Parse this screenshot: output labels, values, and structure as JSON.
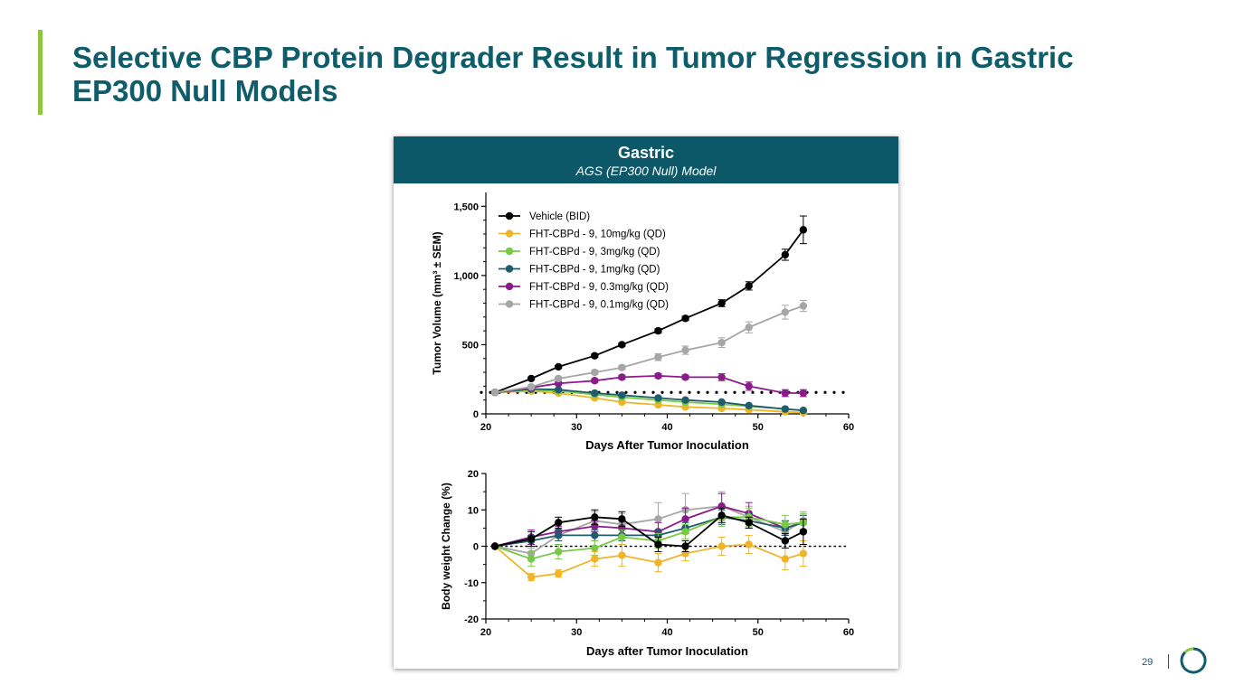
{
  "slide": {
    "title_line1": "Selective CBP Protein Degrader Result in Tumor Regression in Gastric",
    "title_line2": "EP300 Null Models",
    "page_number": "29"
  },
  "panel": {
    "title": "Gastric",
    "subtitle": "AGS (EP300 Null) Model"
  },
  "colors": {
    "title": "#0f5d6b",
    "accent": "#8dc63f",
    "header_bg": "#0d5868"
  },
  "chart_data": [
    {
      "type": "line",
      "title": "Tumor volume",
      "xlabel": "Days After Tumor Inoculation",
      "ylabel": "Tumor Volume (mm³ ± SEM)",
      "xlim": [
        20,
        60
      ],
      "ylim": [
        0,
        1600
      ],
      "xticks": [
        20,
        30,
        40,
        50,
        60
      ],
      "xtick_labels": [
        "20",
        "30",
        "40",
        "50",
        "60"
      ],
      "yticks": [
        0,
        500,
        1000,
        1500
      ],
      "ytick_labels": [
        "0",
        "500",
        "1,000",
        "1,500"
      ],
      "reference_line": 155,
      "legend_position": "top-left",
      "series": [
        {
          "name": "Vehicle (BID)",
          "color": "#000000",
          "x": [
            21,
            25,
            28,
            32,
            35,
            39,
            42,
            46,
            49,
            53,
            55
          ],
          "values": [
            155,
            255,
            340,
            420,
            500,
            600,
            690,
            800,
            925,
            1150,
            1330
          ],
          "err": [
            5,
            8,
            10,
            12,
            12,
            15,
            15,
            25,
            30,
            40,
            100
          ]
        },
        {
          "name": "FHT-CBPd - 9, 10mg/kg (QD)",
          "color": "#f0b429",
          "x": [
            21,
            25,
            28,
            32,
            35,
            39,
            42,
            46,
            49,
            53,
            55
          ],
          "values": [
            155,
            165,
            150,
            115,
            85,
            65,
            50,
            40,
            30,
            15,
            10
          ],
          "err": [
            5,
            8,
            8,
            8,
            8,
            6,
            6,
            5,
            5,
            4,
            3
          ]
        },
        {
          "name": "FHT-CBPd - 9, 3mg/kg (QD)",
          "color": "#7ac943",
          "x": [
            21,
            25,
            28,
            32,
            35,
            39,
            42,
            46,
            49,
            53,
            55
          ],
          "values": [
            155,
            175,
            165,
            140,
            120,
            100,
            85,
            70,
            55,
            35,
            25
          ],
          "err": [
            5,
            8,
            8,
            8,
            8,
            7,
            7,
            6,
            5,
            4,
            4
          ]
        },
        {
          "name": "FHT-CBPd - 9, 1mg/kg (QD)",
          "color": "#1f5c6e",
          "x": [
            21,
            25,
            28,
            32,
            35,
            39,
            42,
            46,
            49,
            53,
            55
          ],
          "values": [
            155,
            180,
            175,
            150,
            135,
            115,
            100,
            85,
            60,
            35,
            25
          ],
          "err": [
            5,
            8,
            8,
            8,
            8,
            7,
            7,
            6,
            5,
            4,
            4
          ]
        },
        {
          "name": "FHT-CBPd - 9, 0.3mg/kg (QD)",
          "color": "#8b1a8b",
          "x": [
            21,
            25,
            28,
            32,
            35,
            39,
            42,
            46,
            49,
            53,
            55
          ],
          "values": [
            155,
            190,
            220,
            240,
            265,
            275,
            265,
            265,
            200,
            150,
            150
          ],
          "err": [
            5,
            10,
            12,
            12,
            15,
            15,
            15,
            25,
            30,
            25,
            25
          ]
        },
        {
          "name": "FHT-CBPd - 9, 0.1mg/kg (QD)",
          "color": "#a6a6a6",
          "x": [
            21,
            25,
            28,
            32,
            35,
            39,
            42,
            46,
            49,
            53,
            55
          ],
          "values": [
            155,
            195,
            255,
            300,
            335,
            410,
            460,
            515,
            625,
            735,
            780
          ],
          "err": [
            5,
            10,
            12,
            15,
            15,
            25,
            30,
            35,
            40,
            50,
            40
          ]
        }
      ]
    },
    {
      "type": "line",
      "title": "Body weight change",
      "xlabel": "Days after Tumor Inoculation",
      "ylabel": "Body weight Change (%)",
      "xlim": [
        20,
        60
      ],
      "ylim": [
        -20,
        20
      ],
      "xticks": [
        20,
        30,
        40,
        50,
        60
      ],
      "xtick_labels": [
        "20",
        "30",
        "40",
        "50",
        "60"
      ],
      "yticks": [
        -20,
        -10,
        0,
        10,
        20
      ],
      "ytick_labels": [
        "-20",
        "-10",
        "0",
        "10",
        "20"
      ],
      "reference_line": 0,
      "series": [
        {
          "name": "FHT-CBPd - 9, 0.1mg/kg (QD)",
          "color": "#a6a6a6",
          "x": [
            21,
            25,
            28,
            32,
            35,
            39,
            42,
            46,
            49,
            53,
            55
          ],
          "values": [
            0,
            -2,
            3,
            7,
            6,
            7.5,
            10,
            11,
            8,
            4,
            7
          ],
          "err": [
            0,
            1.5,
            1.5,
            2.5,
            3,
            4.5,
            4.5,
            4,
            3,
            2,
            2.5
          ]
        },
        {
          "name": "FHT-CBPd - 9, 0.3mg/kg (QD)",
          "color": "#8b1a8b",
          "x": [
            21,
            25,
            28,
            32,
            35,
            39,
            42,
            46,
            49,
            53,
            55
          ],
          "values": [
            0,
            2.5,
            4,
            5.5,
            5,
            4,
            7.5,
            11,
            9,
            5,
            6.5
          ],
          "err": [
            0,
            2,
            1.5,
            1.5,
            2,
            2.5,
            3,
            3.5,
            3,
            2,
            2
          ]
        },
        {
          "name": "FHT-CBPd - 9, 1mg/kg (QD)",
          "color": "#1f5c6e",
          "x": [
            21,
            25,
            28,
            32,
            35,
            39,
            42,
            46,
            49,
            53,
            55
          ],
          "values": [
            0,
            1.5,
            3,
            3,
            3,
            3,
            5,
            8,
            7,
            5,
            6.5
          ],
          "err": [
            0,
            1.5,
            1.5,
            1.5,
            1.5,
            1.5,
            1.5,
            2,
            2,
            2,
            2
          ]
        },
        {
          "name": "FHT-CBPd - 9, 3mg/kg (QD)",
          "color": "#7ac943",
          "x": [
            21,
            25,
            28,
            32,
            35,
            39,
            42,
            46,
            49,
            53,
            55
          ],
          "values": [
            0,
            -3.5,
            -1.5,
            -0.5,
            2.5,
            1.5,
            4,
            8,
            8,
            6,
            6.5
          ],
          "err": [
            0,
            2,
            2,
            2,
            2,
            2,
            2,
            2.5,
            2.5,
            2.5,
            2.5
          ]
        },
        {
          "name": "FHT-CBPd - 9, 10mg/kg (QD)",
          "color": "#f0b429",
          "x": [
            21,
            25,
            28,
            32,
            35,
            39,
            42,
            46,
            49,
            53,
            55
          ],
          "values": [
            0,
            -8.5,
            -7.5,
            -3.5,
            -2.5,
            -4.5,
            -2,
            0,
            0.5,
            -3.5,
            -2
          ],
          "err": [
            0,
            1,
            1,
            2,
            3,
            2.5,
            2,
            2.5,
            2.5,
            3,
            3.5
          ]
        },
        {
          "name": "Vehicle (BID)",
          "color": "#000000",
          "x": [
            21,
            25,
            28,
            32,
            35,
            39,
            42,
            46,
            49,
            53,
            55
          ],
          "values": [
            0,
            2,
            6.5,
            8,
            7.5,
            0.5,
            0,
            8.5,
            6.5,
            1.5,
            4
          ],
          "err": [
            0,
            2,
            1.5,
            2,
            2,
            2,
            1.5,
            2,
            1.5,
            2,
            3.5
          ]
        }
      ]
    }
  ]
}
